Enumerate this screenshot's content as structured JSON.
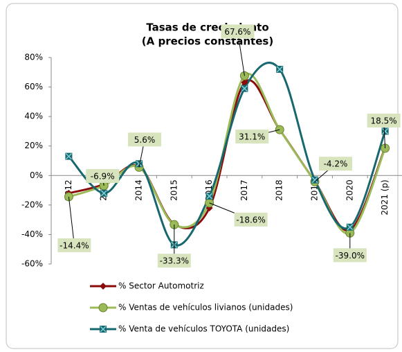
{
  "chart_data": {
    "type": "line",
    "title": [
      "Tasas de crecimiento",
      "(A precios constantes)"
    ],
    "categories": [
      "2012",
      "2013",
      "2014",
      "2015",
      "2016",
      "2017",
      "2018",
      "2019",
      "2020",
      "2021 (p)"
    ],
    "ylim": [
      -60,
      80
    ],
    "yticks": [
      {
        "value": -60,
        "label": "-60%"
      },
      {
        "value": -40,
        "label": "-40%"
      },
      {
        "value": -20,
        "label": "-20%"
      },
      {
        "value": 0,
        "label": "0%"
      },
      {
        "value": 20,
        "label": "20%"
      },
      {
        "value": 40,
        "label": "40%"
      },
      {
        "value": 60,
        "label": "60%"
      },
      {
        "value": 80,
        "label": "80%"
      }
    ],
    "series": [
      {
        "name": "% Sector Automotriz",
        "color": "#8b0a0a",
        "marker": "diamond",
        "values": [
          -12,
          -6,
          6,
          -33,
          -22,
          63,
          31,
          -4,
          -37,
          19
        ]
      },
      {
        "name": "% Ventas de vehículos livianos (unidades)",
        "color": "#9bbb59",
        "marker": "circle",
        "values": [
          -14.4,
          -6.9,
          5.6,
          -33.3,
          -18.6,
          67.6,
          31.1,
          -4.2,
          -39.0,
          18.5
        ],
        "value_labels": [
          "-14.4%",
          "-6.9%",
          "5.6%",
          "-33.3%",
          "-18.6%",
          "67.6%",
          "31.1%",
          "-4.2%",
          "-39.0%",
          "18.5%"
        ]
      },
      {
        "name": "% Venta de vehículos TOYOTA (unidades)",
        "color": "#17686e",
        "marker": "square",
        "values": [
          13,
          -12,
          8,
          -47,
          -14,
          59,
          72,
          -3,
          -35,
          30
        ]
      }
    ]
  }
}
